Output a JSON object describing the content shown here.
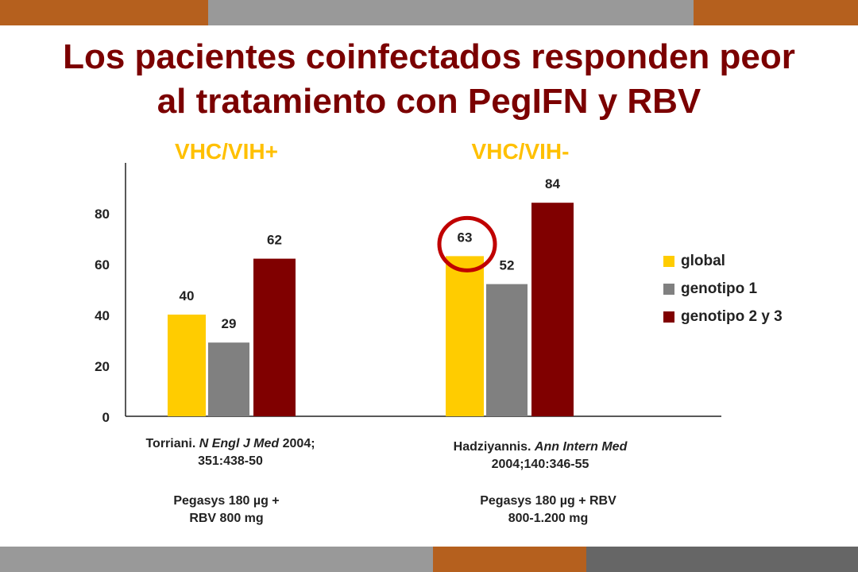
{
  "title": {
    "line1": "Los pacientes coinfectados responden peor",
    "line2": "al tratamiento con PegIFN y RBV"
  },
  "chart_data": {
    "type": "bar",
    "categories": [
      "VHC/VIH+",
      "VHC/VIH-"
    ],
    "series": [
      {
        "name": "global",
        "values": [
          40,
          63
        ],
        "color": "#ffcc00"
      },
      {
        "name": "genotipo 1",
        "values": [
          29,
          52
        ],
        "color": "#808080"
      },
      {
        "name": "genotipo 2 y 3",
        "values": [
          62,
          84
        ],
        "color": "#800000"
      }
    ],
    "yticks": [
      "0",
      "20",
      "40",
      "60",
      "80"
    ],
    "ylim": [
      0,
      100
    ],
    "legend_position": "right",
    "highlight": {
      "category": "VHC/VIH-",
      "series": "global",
      "shape": "circle",
      "color": "#c00000"
    }
  },
  "captions": {
    "left_ref_prefix": "Torriani. ",
    "left_ref_journal": "N Engl J Med",
    "left_ref_suffix": " 2004;",
    "left_ref_line2": "351:438-50",
    "right_ref_prefix": "Hadziyannis. ",
    "right_ref_journal": "Ann Intern Med",
    "right_ref_line2": "2004;140:346-55",
    "left_dose_line1": "Pegasys 180 µg +",
    "left_dose_line2": "RBV 800 mg",
    "right_dose_line1": "Pegasys 180 µg + RBV",
    "right_dose_line2": "800-1.200 mg"
  },
  "colors": {
    "brand_orange": "#b5601e",
    "brand_gray": "#999999",
    "dark_gray": "#666666",
    "title_red": "#7b0000",
    "group_label_yellow": "#ffc000"
  }
}
